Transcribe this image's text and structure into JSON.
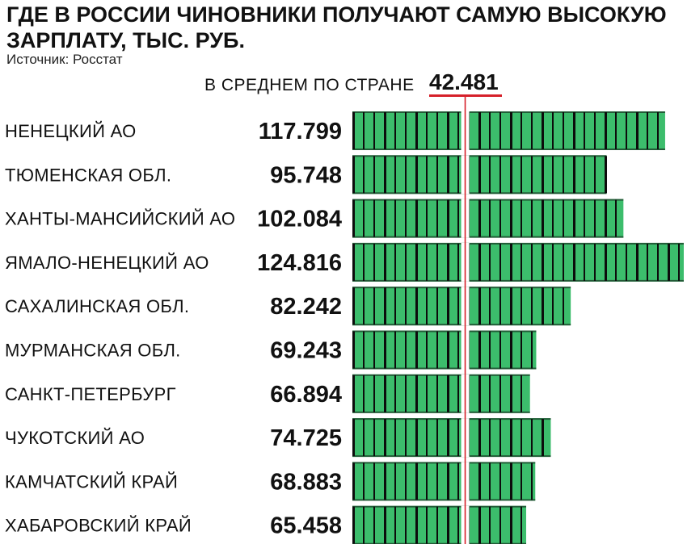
{
  "header": {
    "title": "ГДЕ В РОССИИ ЧИНОВНИКИ ПОЛУЧАЮТ САМУЮ ВЫСОКУЮ ЗАРПЛАТУ, ТЫС. РУБ.",
    "source": "Источник: Росстат"
  },
  "average": {
    "label": "В СРЕДНЕМ ПО СТРАНЕ",
    "value_text": "42.481",
    "value": 42.481
  },
  "colors": {
    "bar": "#3cbd6c",
    "bar_stripe": "#0c0c0c",
    "average_line": "#d6202a"
  },
  "chart_data": {
    "type": "bar",
    "orientation": "horizontal",
    "title": "ГДЕ В РОССИИ ЧИНОВНИКИ ПОЛУЧАЮТ САМУЮ ВЫСОКУЮ ЗАРПЛАТУ, ТЫС. РУБ.",
    "categories": [
      "НЕНЕЦКИЙ АО",
      "ТЮМЕНСКАЯ ОБЛ.",
      "ХАНТЫ-МАНСИЙСКИЙ АО",
      "ЯМАЛО-НЕНЕЦКИЙ АО",
      "САХАЛИНСКАЯ ОБЛ.",
      "МУРМАНСКАЯ ОБЛ.",
      "САНКТ-ПЕТЕРБУРГ",
      "ЧУКОТСКИЙ АО",
      "КАМЧАТСКИЙ КРАЙ",
      "ХАБАРОВСКИЙ КРАЙ"
    ],
    "values": [
      117.799,
      95.748,
      102.084,
      124.816,
      82.242,
      69.243,
      66.894,
      74.725,
      68.883,
      65.458
    ],
    "value_labels": [
      "117.799",
      "95.748",
      "102.084",
      "124.816",
      "82.242",
      "69.243",
      "66.894",
      "74.725",
      "68.883",
      "65.458"
    ],
    "reference_line": {
      "label": "В СРЕДНЕМ ПО СТРАНЕ",
      "value": 42.481
    },
    "xlim": [
      0,
      124.816
    ],
    "grid": false,
    "legend": "none"
  }
}
